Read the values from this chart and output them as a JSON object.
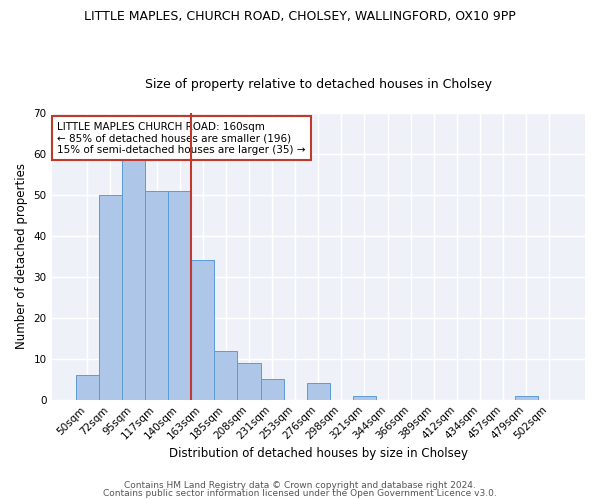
{
  "title1": "LITTLE MAPLES, CHURCH ROAD, CHOLSEY, WALLINGFORD, OX10 9PP",
  "title2": "Size of property relative to detached houses in Cholsey",
  "xlabel": "Distribution of detached houses by size in Cholsey",
  "ylabel": "Number of detached properties",
  "categories": [
    "50sqm",
    "72sqm",
    "95sqm",
    "117sqm",
    "140sqm",
    "163sqm",
    "185sqm",
    "208sqm",
    "231sqm",
    "253sqm",
    "276sqm",
    "298sqm",
    "321sqm",
    "344sqm",
    "366sqm",
    "389sqm",
    "412sqm",
    "434sqm",
    "457sqm",
    "479sqm",
    "502sqm"
  ],
  "values": [
    6,
    50,
    59,
    51,
    51,
    34,
    12,
    9,
    5,
    0,
    4,
    0,
    1,
    0,
    0,
    0,
    0,
    0,
    0,
    1,
    0
  ],
  "bar_color": "#aec6e8",
  "bar_edge_color": "#5b9bd5",
  "reference_line_index": 5,
  "reference_line_color": "#c0392b",
  "ylim": [
    0,
    70
  ],
  "yticks": [
    0,
    10,
    20,
    30,
    40,
    50,
    60,
    70
  ],
  "annotation_box_text": "LITTLE MAPLES CHURCH ROAD: 160sqm\n← 85% of detached houses are smaller (196)\n15% of semi-detached houses are larger (35) →",
  "footer1": "Contains HM Land Registry data © Crown copyright and database right 2024.",
  "footer2": "Contains public sector information licensed under the Open Government Licence v3.0.",
  "background_color": "#ffffff",
  "plot_bg_color": "#eef2f8",
  "grid_color": "#ffffff",
  "title1_fontsize": 9,
  "title2_fontsize": 9,
  "xlabel_fontsize": 8.5,
  "ylabel_fontsize": 8.5,
  "tick_fontsize": 7.5,
  "annotation_fontsize": 7.5,
  "footer_fontsize": 6.5
}
